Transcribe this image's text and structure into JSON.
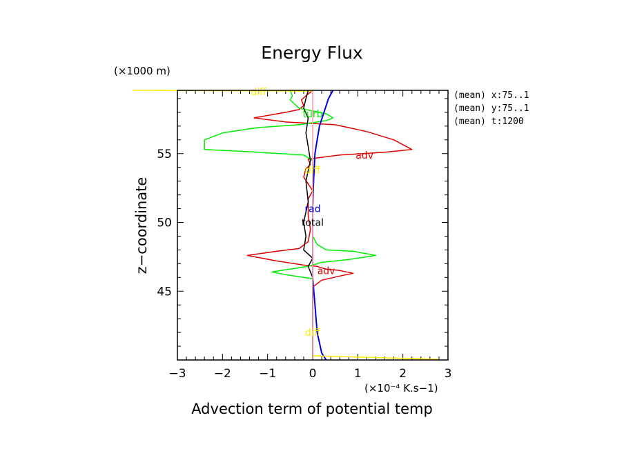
{
  "chart_data": {
    "type": "line",
    "title": "Energy Flux",
    "xlabel": "Advection term of potential temp",
    "ylabel": "z−coordinate",
    "x_unit": "(×10⁻⁴ K.s−1)",
    "y_unit": "(×1000 m)",
    "xlim": [
      -3,
      3
    ],
    "ylim": [
      40,
      59.6
    ],
    "x_ticks": [
      -3,
      -2,
      -1,
      0,
      1,
      2,
      3
    ],
    "y_ticks": [
      45,
      50,
      55
    ],
    "meta": [
      "(mean) x:75..1",
      "(mean) y:75..1",
      "(mean) t:1200"
    ],
    "series": [
      {
        "name": "adv",
        "color": "#dd0000",
        "label_at": [
          [
            1.15,
            54.9
          ],
          [
            0.3,
            46.5
          ]
        ],
        "points": [
          [
            0.0,
            59.6
          ],
          [
            -0.15,
            59.2
          ],
          [
            -0.25,
            58.9
          ],
          [
            -0.2,
            58.5
          ],
          [
            -0.3,
            58.2
          ],
          [
            -0.6,
            58.0
          ],
          [
            -1.3,
            57.6
          ],
          [
            -0.6,
            57.3
          ],
          [
            0.5,
            57.1
          ],
          [
            1.2,
            56.6
          ],
          [
            1.8,
            56.0
          ],
          [
            2.2,
            55.3
          ],
          [
            1.6,
            55.1
          ],
          [
            0.6,
            54.9
          ],
          [
            -0.1,
            54.6
          ],
          [
            -0.05,
            54.2
          ],
          [
            -0.15,
            53.9
          ],
          [
            -0.2,
            53.3
          ],
          [
            -0.1,
            52.8
          ],
          [
            0.0,
            52.3
          ],
          [
            -0.1,
            51.7
          ],
          [
            -0.1,
            50.5
          ],
          [
            -0.05,
            49.5
          ],
          [
            -0.1,
            48.6
          ],
          [
            -0.3,
            48.1
          ],
          [
            -0.8,
            47.9
          ],
          [
            -1.45,
            47.6
          ],
          [
            -0.8,
            47.2
          ],
          [
            -0.2,
            46.9
          ],
          [
            0.1,
            46.8
          ],
          [
            0.3,
            46.6
          ],
          [
            0.6,
            46.5
          ],
          [
            0.9,
            46.3
          ],
          [
            0.6,
            46.1
          ],
          [
            0.2,
            45.8
          ],
          [
            0.0,
            45.3
          ],
          [
            0.0,
            44.5
          ],
          [
            0.0,
            40.0
          ]
        ]
      },
      {
        "name": "turb",
        "color": "#00ee00",
        "label_at": [
          [
            0.0,
            57.9
          ]
        ],
        "points": [
          [
            -0.5,
            59.6
          ],
          [
            -0.45,
            59.2
          ],
          [
            -0.5,
            58.9
          ],
          [
            -0.3,
            58.3
          ],
          [
            0.3,
            57.9
          ],
          [
            0.45,
            57.6
          ],
          [
            0.3,
            57.4
          ],
          [
            -0.3,
            57.1
          ],
          [
            -1.2,
            56.9
          ],
          [
            -2.0,
            56.5
          ],
          [
            -2.4,
            56.0
          ],
          [
            -2.4,
            55.3
          ],
          [
            -1.2,
            55.1
          ],
          [
            -0.2,
            54.9
          ],
          [
            0.0,
            54.5
          ],
          [
            0.0,
            52.0
          ],
          [
            0.0,
            49.0
          ],
          [
            0.1,
            48.4
          ],
          [
            0.3,
            48.0
          ],
          [
            0.9,
            47.9
          ],
          [
            1.4,
            47.6
          ],
          [
            0.8,
            47.3
          ],
          [
            0.2,
            47.1
          ],
          [
            -0.1,
            46.8
          ],
          [
            -0.5,
            46.6
          ],
          [
            -0.9,
            46.4
          ],
          [
            -0.6,
            46.2
          ],
          [
            0.0,
            45.9
          ],
          [
            0.0,
            45.0
          ],
          [
            0.0,
            41.0
          ],
          [
            0.0,
            40.0
          ]
        ]
      },
      {
        "name": "rad",
        "color": "#0000dd",
        "label_at": [
          [
            0.0,
            51.0
          ]
        ],
        "points": [
          [
            0.45,
            59.6
          ],
          [
            0.35,
            59.0
          ],
          [
            0.25,
            58.0
          ],
          [
            0.15,
            57.0
          ],
          [
            0.1,
            56.0
          ],
          [
            0.05,
            55.0
          ],
          [
            0.02,
            53.0
          ],
          [
            0.0,
            51.0
          ],
          [
            0.0,
            48.0
          ],
          [
            0.0,
            46.0
          ],
          [
            0.05,
            44.0
          ],
          [
            0.1,
            42.0
          ],
          [
            0.2,
            40.5
          ],
          [
            0.3,
            40.0
          ]
        ]
      },
      {
        "name": "diff",
        "color": "#ffee00",
        "label_at": [
          [
            -1.2,
            59.5
          ],
          [
            0.0,
            53.8
          ],
          [
            0.0,
            42.0
          ]
        ],
        "points": [
          [
            -4.0,
            59.6
          ],
          [
            0.0,
            59.55
          ],
          [
            0.0,
            40.3
          ],
          [
            2.8,
            40.05
          ]
        ]
      },
      {
        "name": "total",
        "color": "#000000",
        "label_at": [
          [
            0.0,
            50.0
          ]
        ],
        "points": [
          [
            -0.1,
            59.6
          ],
          [
            -0.15,
            59.0
          ],
          [
            -0.2,
            58.3
          ],
          [
            -0.1,
            57.6
          ],
          [
            -0.15,
            56.5
          ],
          [
            -0.1,
            55.5
          ],
          [
            -0.05,
            54.5
          ],
          [
            -0.15,
            53.0
          ],
          [
            -0.1,
            51.5
          ],
          [
            -0.2,
            50.0
          ],
          [
            -0.15,
            49.0
          ],
          [
            -0.2,
            48.0
          ],
          [
            0.0,
            47.4
          ],
          [
            -0.1,
            46.8
          ],
          [
            0.0,
            46.0
          ],
          [
            0.0,
            40.0
          ]
        ]
      },
      {
        "name": "",
        "color": "#ff99cc",
        "points": [
          [
            0.0,
            59.6
          ],
          [
            0.0,
            40.0
          ]
        ]
      }
    ]
  }
}
